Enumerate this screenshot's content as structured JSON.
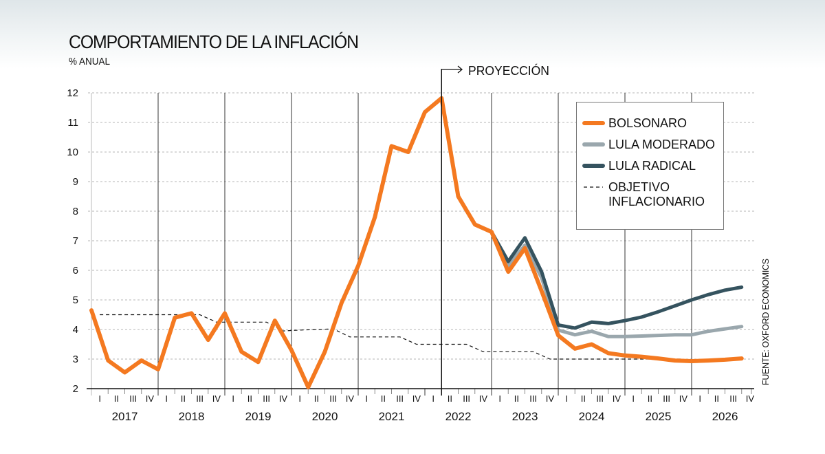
{
  "header": {
    "title": "COMPORTAMIENTO DE LA INFLACIÓN",
    "subtitle": "% ANUAL"
  },
  "source": "FUENTE: OXFORD ECONOMICS",
  "projection_label": "PROYECCIÓN",
  "chart_data": {
    "type": "line",
    "title": "COMPORTAMIENTO DE LA INFLACIÓN",
    "ylabel": "% ANUAL",
    "ylim": [
      2,
      12
    ],
    "yticks": [
      "2",
      "3",
      "4",
      "5",
      "6",
      "7",
      "8",
      "9",
      "10",
      "11",
      "12"
    ],
    "years": [
      "2017",
      "2018",
      "2019",
      "2020",
      "2021",
      "2022",
      "2023",
      "2024",
      "2025",
      "2026"
    ],
    "quarters": [
      "I",
      "II",
      "III",
      "IV"
    ],
    "projection_start_index": 21,
    "grid": true,
    "legend_position": "top-right",
    "series": [
      {
        "name": "BOLSONARO",
        "color": "#f47920",
        "style": "solid",
        "start": 0,
        "values": [
          4.65,
          2.95,
          2.55,
          2.95,
          2.65,
          4.4,
          4.55,
          3.65,
          4.55,
          3.25,
          2.9,
          4.3,
          3.3,
          2.05,
          3.25,
          4.9,
          6.15,
          7.8,
          10.2,
          10.0,
          11.35,
          11.82,
          8.5,
          7.55,
          7.3,
          5.95,
          6.75,
          5.3,
          3.8,
          3.35,
          3.5,
          3.2,
          3.12,
          3.08,
          3.02,
          2.95,
          2.93,
          2.95,
          2.98,
          3.02
        ]
      },
      {
        "name": "LULA MODERADO",
        "color": "#9aa7ad",
        "style": "solid",
        "start": 24,
        "values": [
          7.3,
          6.15,
          6.85,
          5.75,
          3.98,
          3.82,
          3.94,
          3.76,
          3.76,
          3.78,
          3.8,
          3.82,
          3.82,
          3.94,
          4.02,
          4.1
        ]
      },
      {
        "name": "LULA RADICAL",
        "color": "#35535f",
        "style": "solid",
        "start": 24,
        "values": [
          7.3,
          6.3,
          7.1,
          5.95,
          4.15,
          4.05,
          4.25,
          4.2,
          4.3,
          4.42,
          4.6,
          4.8,
          5.0,
          5.18,
          5.33,
          5.43
        ]
      },
      {
        "name": "OBJETIVO INFLACIONARIO",
        "legend_lines": [
          "OBJETIVO",
          "INFLACIONARIO"
        ],
        "color": "#111111",
        "style": "dashed",
        "start": 0.5,
        "values": [
          4.5,
          4.5,
          4.5,
          4.5,
          4.5,
          4.5,
          4.5,
          4.25,
          4.25,
          4.25,
          4.25,
          3.95,
          3.98,
          4.0,
          4.02,
          3.75,
          3.75,
          3.75,
          3.75,
          3.5,
          3.5,
          3.5,
          3.5,
          3.25,
          3.25,
          3.25,
          3.25,
          3.0,
          3.0,
          3.0,
          3.0,
          3.0,
          3.0,
          3.0,
          3.0,
          3.0
        ]
      }
    ]
  }
}
